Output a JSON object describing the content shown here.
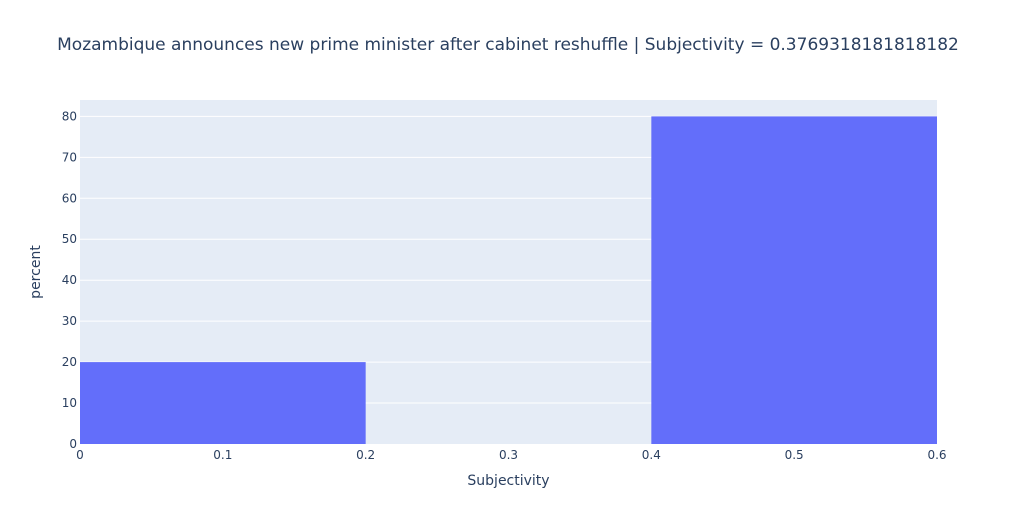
{
  "chart_data": {
    "type": "bar",
    "title": "Mozambique announces new prime minister after cabinet reshuffle  | Subjectivity = 0.3769318181818182",
    "xlabel": "Subjectivity",
    "ylabel": "percent",
    "xlim": [
      0,
      0.6
    ],
    "ylim": [
      0,
      84
    ],
    "x_ticks": [
      "0",
      "0.1",
      "0.2",
      "0.3",
      "0.4",
      "0.5",
      "0.6"
    ],
    "y_ticks": [
      "0",
      "10",
      "20",
      "30",
      "40",
      "50",
      "60",
      "70",
      "80"
    ],
    "bins": [
      {
        "x0": 0.0,
        "x1": 0.2,
        "value": 20
      },
      {
        "x0": 0.2,
        "x1": 0.4,
        "value": 0
      },
      {
        "x0": 0.4,
        "x1": 0.6,
        "value": 80
      }
    ],
    "bar_color": "#636efa",
    "plot_bg": "#e5ecf6",
    "grid": true,
    "legend": "none"
  }
}
